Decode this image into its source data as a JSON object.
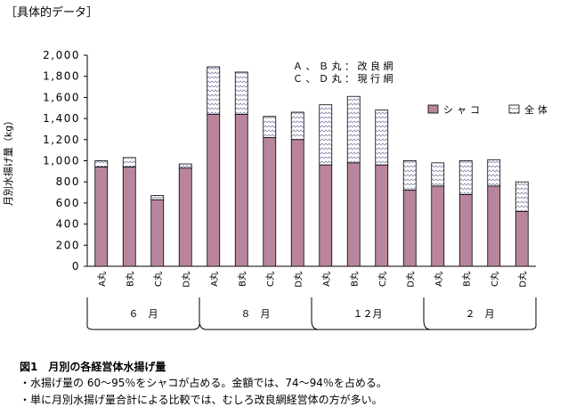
{
  "header": "［具体的データ］",
  "caption": {
    "title": "図1　月別の各経営体水揚げ量",
    "notes": [
      "・水揚げ量の 60～95％をシャコが占める。金額では、74～94％を占める。",
      "・単に月別水揚げ量合計による比較では、むしろ改良網経営体の方が多い。"
    ]
  },
  "chart_data": {
    "type": "bar",
    "ylabel": "月別水揚げ量（kg）",
    "ylim": [
      0,
      2000
    ],
    "yticks": [
      "0",
      "200",
      "400",
      "600",
      "800",
      "1,000",
      "1,200",
      "1,400",
      "1,600",
      "1,800",
      "2,000"
    ],
    "annotations": [
      "Ａ 、 Ｂ 丸 ： 改 良 網",
      "Ｃ 、 Ｄ 丸 ： 現 行 網"
    ],
    "legend": {
      "position": "right",
      "items": [
        "シャコ",
        "全体"
      ]
    },
    "categories": [
      "A丸",
      "B丸",
      "C丸",
      "D丸",
      "A丸",
      "B丸",
      "C丸",
      "D丸",
      "A丸",
      "B丸",
      "C丸",
      "D丸",
      "A丸",
      "B丸",
      "C丸",
      "D丸"
    ],
    "groups": [
      {
        "label": "６　月",
        "start": 0,
        "end": 3
      },
      {
        "label": "８　月",
        "start": 4,
        "end": 7
      },
      {
        "label": "１２月",
        "start": 8,
        "end": 11
      },
      {
        "label": "２　月",
        "start": 12,
        "end": 15
      }
    ],
    "series": [
      {
        "name": "シャコ",
        "values": [
          940,
          940,
          630,
          930,
          1440,
          1440,
          1220,
          1200,
          960,
          980,
          960,
          720,
          760,
          680,
          760,
          520
        ]
      },
      {
        "name": "全体",
        "values": [
          1000,
          1030,
          670,
          970,
          1890,
          1840,
          1420,
          1460,
          1530,
          1610,
          1480,
          1000,
          980,
          1000,
          1010,
          800
        ]
      }
    ],
    "colors": {
      "shako": "#b9859d",
      "total_hatch": "#8a8ab0"
    }
  }
}
